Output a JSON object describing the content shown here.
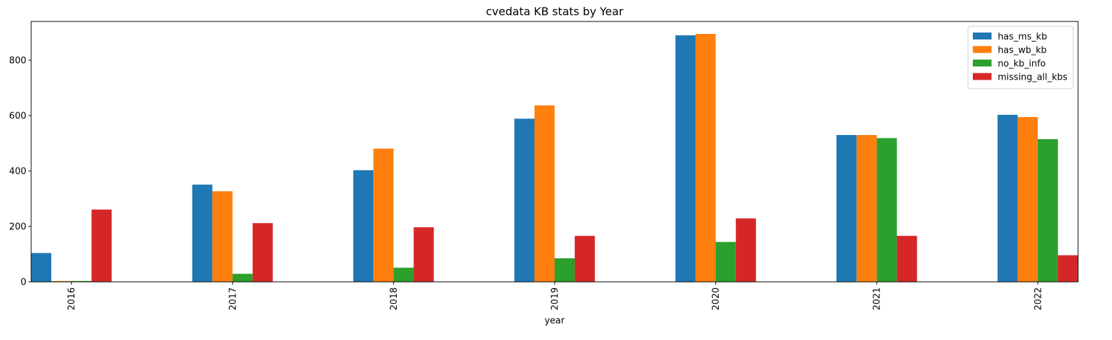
{
  "chart_data": {
    "type": "bar",
    "title": "cvedata KB stats by Year",
    "xlabel": "year",
    "ylabel": "",
    "categories": [
      "2016",
      "2017",
      "2018",
      "2019",
      "2020",
      "2021",
      "2022"
    ],
    "series": [
      {
        "name": "has_ms_kb",
        "color": "#1f77b4",
        "values": [
          104,
          351,
          403,
          589,
          890,
          530,
          603
        ]
      },
      {
        "name": "has_wb_kb",
        "color": "#ff7f0e",
        "values": [
          3,
          327,
          481,
          637,
          895,
          530,
          595
        ]
      },
      {
        "name": "no_kb_info",
        "color": "#2ca02c",
        "values": [
          3,
          29,
          51,
          85,
          144,
          519,
          515
        ]
      },
      {
        "name": "missing_all_kbs",
        "color": "#d62728",
        "values": [
          261,
          212,
          197,
          166,
          229,
          166,
          96
        ]
      }
    ],
    "ylim": [
      0,
      940
    ],
    "yticks": [
      0,
      200,
      400,
      600,
      800
    ],
    "grid": false,
    "legend_position": "top-right",
    "xtick_rotation": "vertical"
  }
}
